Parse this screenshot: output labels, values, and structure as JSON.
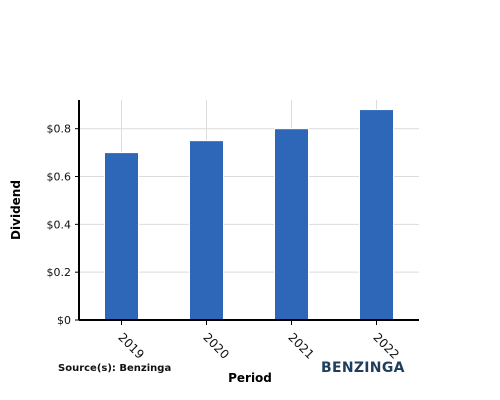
{
  "chart_data": {
    "type": "bar",
    "categories": [
      "2019",
      "2020",
      "2021",
      "2022"
    ],
    "values": [
      0.7,
      0.75,
      0.8,
      0.88
    ],
    "title": "",
    "xlabel": "Period",
    "ylabel": "Dividend",
    "ylim": [
      0,
      0.92
    ],
    "yticks": [
      0,
      0.2,
      0.4,
      0.6,
      0.8
    ],
    "ytick_labels": [
      "$0",
      "$0.2",
      "$0.4",
      "$0.6",
      "$0.8"
    ],
    "grid": true,
    "bar_color": "#2e67b8"
  },
  "footer": {
    "source": "Source(s): Benzinga",
    "logo_text": "BENZINGA"
  }
}
